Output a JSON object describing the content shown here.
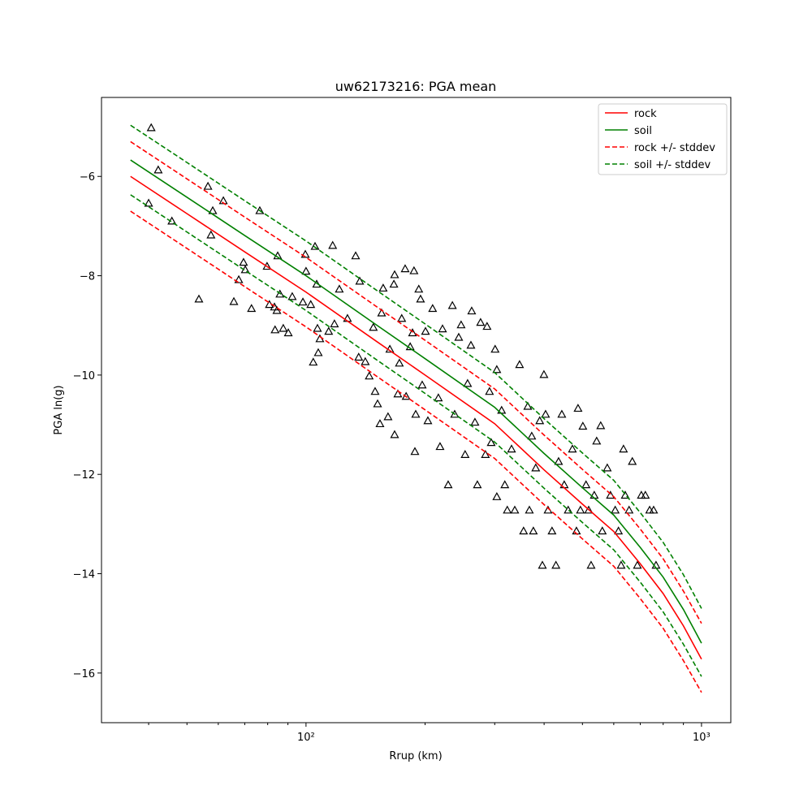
{
  "chart_data": {
    "type": "line",
    "title": "uw62173216: PGA mean",
    "xlabel": "Rrup (km)",
    "ylabel": "PGA ln(g)",
    "xscale": "log",
    "xlim": [
      30.4,
      1186
    ],
    "ylim": [
      -17.0,
      -4.41
    ],
    "xticks": [
      {
        "value": 100,
        "label": "10²"
      },
      {
        "value": 1000,
        "label": "10³"
      }
    ],
    "xminorticks": [
      40,
      50,
      60,
      70,
      80,
      90,
      200,
      300,
      400,
      500,
      600,
      700,
      800,
      900
    ],
    "yticks": [
      {
        "value": -16,
        "label": "−16"
      },
      {
        "value": -14,
        "label": "−14"
      },
      {
        "value": -12,
        "label": "−12"
      },
      {
        "value": -10,
        "label": "−10"
      },
      {
        "value": -8,
        "label": "−8"
      },
      {
        "value": -6,
        "label": "−6"
      }
    ],
    "legend": "upper right",
    "x": [
      36,
      50,
      70,
      100,
      150,
      200,
      300,
      400,
      500,
      600,
      700,
      800,
      900,
      1000
    ],
    "series": [
      {
        "name": "rock",
        "color": "#ff0000",
        "style": "solid",
        "values": [
          -6.0,
          -6.75,
          -7.52,
          -8.33,
          -9.31,
          -10.0,
          -10.98,
          -11.91,
          -12.6,
          -13.15,
          -13.8,
          -14.4,
          -15.05,
          -15.72
        ]
      },
      {
        "name": "soil",
        "color": "#008000",
        "style": "solid",
        "values": [
          -5.67,
          -6.42,
          -7.19,
          -8.0,
          -8.98,
          -9.67,
          -10.65,
          -11.58,
          -12.27,
          -12.82,
          -13.47,
          -14.07,
          -14.72,
          -15.4
        ]
      },
      {
        "name": "rock +/- stddev",
        "color": "#ff0000",
        "style": "dashed",
        "upper": [
          -5.3,
          -6.05,
          -6.82,
          -7.63,
          -8.61,
          -9.3,
          -10.28,
          -11.21,
          -11.9,
          -12.45,
          -13.1,
          -13.7,
          -14.35,
          -15.0
        ],
        "lower": [
          -6.7,
          -7.45,
          -8.22,
          -9.03,
          -10.01,
          -10.7,
          -11.68,
          -12.61,
          -13.3,
          -13.85,
          -14.5,
          -15.1,
          -15.75,
          -16.39
        ]
      },
      {
        "name": "soil +/- stddev",
        "color": "#008000",
        "style": "dashed",
        "upper": [
          -4.97,
          -5.72,
          -6.49,
          -7.3,
          -8.28,
          -8.97,
          -9.95,
          -10.88,
          -11.57,
          -12.12,
          -12.77,
          -13.37,
          -14.02,
          -14.7
        ],
        "lower": [
          -6.37,
          -7.12,
          -7.89,
          -8.7,
          -9.68,
          -10.37,
          -11.35,
          -12.28,
          -12.97,
          -13.52,
          -14.17,
          -14.77,
          -15.42,
          -16.07
        ]
      }
    ],
    "scatter": {
      "color": "#000000",
      "x": [
        40.6,
        42.3,
        40.0,
        45.8,
        56.5,
        58.1,
        61.8,
        57.5,
        53.6,
        65.7,
        67.6,
        69.5,
        70.2,
        72.8,
        76.4,
        79.7,
        80.8,
        83.2,
        84.8,
        84.4,
        85.9,
        83.5,
        87.6,
        90.2,
        92.3,
        98.2,
        99.6,
        100,
        102.8,
        104.3,
        105.4,
        106.9,
        106.4,
        107.4,
        108.4,
        114.1,
        116.8,
        118.0,
        121.4,
        127.3,
        133.5,
        136.7,
        135.9,
        141.2,
        144.5,
        148.0,
        149.5,
        151.7,
        153.8,
        155.3,
        156.7,
        161.2,
        162.9,
        166.8,
        167.5,
        167.5,
        170.7,
        172.2,
        174.6,
        178.1,
        179.1,
        183.4,
        185.9,
        188.5,
        189.4,
        187.5,
        192.8,
        194.8,
        196.7,
        200.5,
        203.3,
        209.0,
        216.1,
        218.2,
        221.4,
        228.8,
        234.5,
        237.6,
        243.3,
        246.7,
        252.5,
        256.2,
        261.2,
        262.4,
        267.4,
        271.2,
        276.3,
        284.2,
        286.9,
        291.0,
        293.9,
        300.7,
        303.7,
        303.7,
        312.3,
        318.2,
        322.8,
        330.9,
        337.2,
        346.7,
        354.9,
        363.7,
        367.1,
        372.2,
        375.7,
        381.0,
        389.9,
        396.0,
        399.6,
        403.4,
        409.2,
        418.8,
        428.5,
        435.1,
        443.4,
        449.7,
        460.2,
        471.6,
        482.8,
        487.3,
        494.2,
        501.2,
        510.5,
        518.5,
        525.8,
        535.6,
        543.1,
        556.1,
        561.3,
        577.8,
        588.5,
        605.1,
        616.6,
        626.2,
        635.0,
        641.4,
        656.0,
        668.4,
        688.5,
        704.5,
        721.2,
        739.5,
        756.8,
        767.4
      ],
      "y": [
        -5.02,
        -5.87,
        -6.54,
        -6.9,
        -6.2,
        -6.69,
        -6.49,
        -7.18,
        -8.47,
        -8.52,
        -8.08,
        -7.73,
        -7.88,
        -8.66,
        -6.69,
        -7.81,
        -8.58,
        -8.63,
        -7.6,
        -8.7,
        -8.37,
        -9.09,
        -9.06,
        -9.15,
        -8.42,
        -8.53,
        -7.57,
        -7.91,
        -8.58,
        -9.74,
        -7.41,
        -9.06,
        -8.17,
        -9.55,
        -9.27,
        -9.12,
        -7.39,
        -8.97,
        -8.27,
        -8.86,
        -7.6,
        -8.11,
        -9.64,
        -9.73,
        -10.02,
        -9.04,
        -10.33,
        -10.58,
        -10.98,
        -8.75,
        -8.25,
        -10.84,
        -9.48,
        -8.17,
        -11.2,
        -7.98,
        -10.38,
        -9.76,
        -8.86,
        -7.86,
        -10.43,
        -9.43,
        -9.15,
        -11.54,
        -10.79,
        -7.9,
        -8.27,
        -8.47,
        -10.2,
        -9.12,
        -10.92,
        -8.66,
        -10.46,
        -11.44,
        -9.07,
        -12.21,
        -8.6,
        -10.79,
        -9.24,
        -8.99,
        -11.6,
        -10.17,
        -9.4,
        -8.71,
        -10.95,
        -12.21,
        -8.94,
        -11.6,
        -9.02,
        -10.33,
        -11.36,
        -9.48,
        -12.45,
        -9.89,
        -10.71,
        -12.21,
        -12.72,
        -11.49,
        -12.72,
        -9.79,
        -13.14,
        -10.63,
        -12.72,
        -11.23,
        -13.14,
        -11.87,
        -10.92,
        -13.83,
        -9.99,
        -10.79,
        -12.72,
        -13.14,
        -13.83,
        -11.74,
        -10.79,
        -12.21,
        -12.72,
        -11.49,
        -13.14,
        -10.67,
        -12.72,
        -11.03,
        -12.21,
        -12.72,
        -13.83,
        -12.42,
        -11.33,
        -11.02,
        -13.14,
        -11.87,
        -12.42,
        -12.72,
        -13.14,
        -13.83,
        -11.49,
        -12.42,
        -12.72,
        -11.74,
        -13.83,
        -12.42,
        -12.42,
        -12.72,
        -12.72,
        -13.83
      ]
    }
  }
}
